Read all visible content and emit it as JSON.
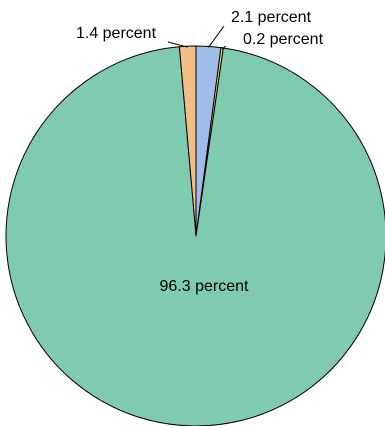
{
  "chart_data": {
    "type": "pie",
    "slices": [
      {
        "label": "1.4 percent",
        "value": 1.4,
        "color": "#f2bf86"
      },
      {
        "label": "2.1 percent",
        "value": 2.1,
        "color": "#9fbde8"
      },
      {
        "label": "0.2 percent",
        "value": 0.2,
        "color": "#f2d96b"
      },
      {
        "label": "96.3 percent",
        "value": 96.3,
        "color": "#80cbb0"
      }
    ],
    "start_angle_deg": -90,
    "direction": "counterclockwise-first-slice-left"
  }
}
